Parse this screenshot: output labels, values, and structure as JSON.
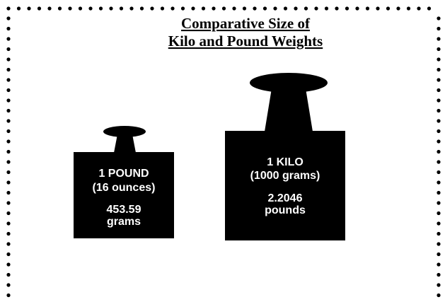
{
  "title": {
    "lines": [
      "Comparative Size of",
      "Kilo and Pound Weights"
    ]
  },
  "weights": [
    {
      "name": "1 POUND",
      "equivalent": "(16 ounces)",
      "amount": "453.59",
      "unit": "grams"
    },
    {
      "name": "1 KILO",
      "equivalent": "(1000 grams)",
      "amount": "2.2046",
      "unit": "pounds"
    }
  ]
}
